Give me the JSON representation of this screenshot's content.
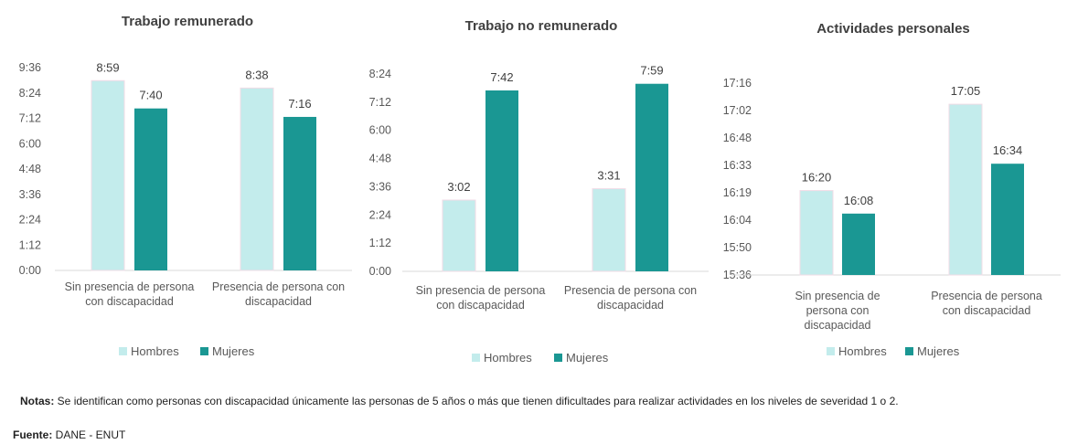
{
  "colors": {
    "hombres": "#c3ecec",
    "mujeres": "#1a9793",
    "axis": "#d9d9d9"
  },
  "chart_data": [
    {
      "type": "bar",
      "title": "Trabajo remunerado",
      "categories": [
        [
          "Sin presencia de persona",
          "con discapacidad"
        ],
        [
          "Presencia de persona con",
          "discapacidad"
        ]
      ],
      "series": [
        {
          "name": "Hombres",
          "values": [
            539,
            518
          ],
          "labels": [
            "8:59",
            "8:38"
          ]
        },
        {
          "name": "Mujeres",
          "values": [
            460,
            436
          ],
          "labels": [
            "7:40",
            "7:16"
          ]
        }
      ],
      "unit": "minutes",
      "ylim": [
        0,
        576
      ],
      "yticks": [
        "0:00",
        "1:12",
        "2:24",
        "3:36",
        "4:48",
        "6:00",
        "7:12",
        "8:24",
        "9:36"
      ],
      "legend": "bottom"
    },
    {
      "type": "bar",
      "title": "Trabajo no remunerado",
      "categories": [
        [
          "Sin presencia de persona",
          "con discapacidad"
        ],
        [
          "Presencia de persona con",
          "discapacidad"
        ]
      ],
      "series": [
        {
          "name": "Hombres",
          "values": [
            182,
            211
          ],
          "labels": [
            "3:02",
            "3:31"
          ]
        },
        {
          "name": "Mujeres",
          "values": [
            462,
            479
          ],
          "labels": [
            "7:42",
            "7:59"
          ]
        }
      ],
      "unit": "minutes",
      "ylim": [
        0,
        504
      ],
      "yticks": [
        "0:00",
        "1:12",
        "2:24",
        "3:36",
        "4:48",
        "6:00",
        "7:12",
        "8:24"
      ],
      "legend": "bottom"
    },
    {
      "type": "bar",
      "title": "Actividades personales",
      "categories": [
        [
          "Sin presencia de",
          "persona con",
          "discapacidad"
        ],
        [
          "Presencia de persona",
          "con discapacidad"
        ]
      ],
      "series": [
        {
          "name": "Hombres",
          "values": [
            980,
            1025
          ],
          "labels": [
            "16:20",
            "17:05"
          ]
        },
        {
          "name": "Mujeres",
          "values": [
            968,
            994
          ],
          "labels": [
            "16:08",
            "16:34"
          ]
        }
      ],
      "unit": "minutes",
      "ylim": [
        936,
        1036
      ],
      "yticks": [
        "15:36",
        "15:50",
        "16:04",
        "16:19",
        "16:33",
        "16:48",
        "17:02",
        "17:16"
      ],
      "legend": "bottom"
    }
  ],
  "notes": {
    "label": "Notas:",
    "text": " Se identifican como personas con discapacidad únicamente las personas de 5 años o más que tienen dificultades para realizar actividades en los niveles de severidad 1 o 2."
  },
  "source": {
    "label": "Fuente:",
    "text": " DANE - ENUT"
  }
}
